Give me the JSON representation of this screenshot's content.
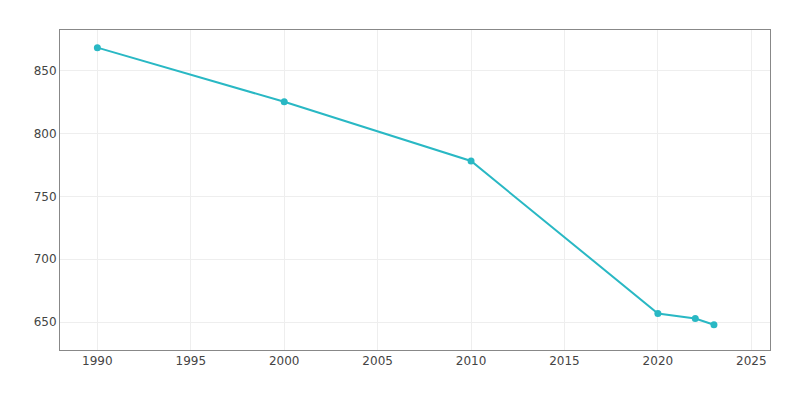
{
  "chart_data": {
    "type": "line",
    "x": [
      1990,
      2000,
      2010,
      2020,
      2022,
      2023
    ],
    "values": [
      868,
      825,
      778,
      657,
      653,
      648
    ],
    "color": "#29b8c4",
    "marker": "circle",
    "xlim": [
      1988,
      2026
    ],
    "ylim": [
      628,
      882
    ],
    "xticks": [
      1990,
      1995,
      2000,
      2005,
      2010,
      2015,
      2020,
      2025
    ],
    "yticks": [
      650,
      700,
      750,
      800,
      850
    ],
    "grid": true
  }
}
